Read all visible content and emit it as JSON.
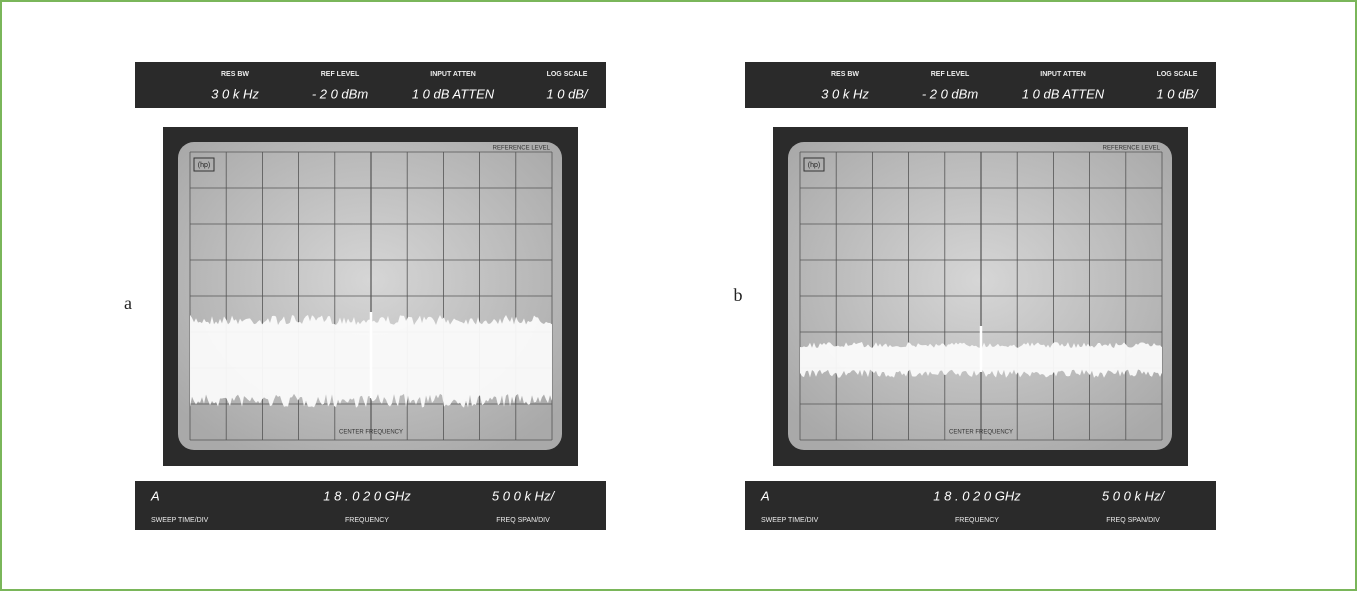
{
  "panels": [
    {
      "label": "a",
      "settings": [
        {
          "name": "RES BW",
          "value": "3 0 k Hz"
        },
        {
          "name": "REF LEVEL",
          "value": "- 2 0 dBm"
        },
        {
          "name": "INPUT ATTEN",
          "value": "1 0 dB ATTEN"
        },
        {
          "name": "LOG SCALE",
          "value": "1 0 dB/"
        }
      ],
      "screen": {
        "logo": "(hp)",
        "reference": "REFERENCE LEVEL",
        "center": "CENTER FREQUENCY"
      },
      "readouts": [
        {
          "name": "SWEEP TIME/DIV",
          "value": "A"
        },
        {
          "name": "FREQUENCY",
          "value": "1 8 . 0 2 0 GHz"
        },
        {
          "name": "FREQ SPAN/DIV",
          "value": "5 0 0 k Hz/"
        }
      ]
    },
    {
      "label": "b",
      "settings": [
        {
          "name": "RES BW",
          "value": "3 0 k Hz"
        },
        {
          "name": "REF LEVEL",
          "value": "- 2 0 dBm"
        },
        {
          "name": "INPUT ATTEN",
          "value": "1 0 dB ATTEN"
        },
        {
          "name": "LOG SCALE",
          "value": "1 0 dB/"
        }
      ],
      "screen": {
        "logo": "(hp)",
        "reference": "REFERENCE LEVEL",
        "center": "CENTER FREQUENCY"
      },
      "readouts": [
        {
          "name": "SWEEP TIME/DIV",
          "value": "A"
        },
        {
          "name": "FREQUENCY",
          "value": "1 8 . 0 2 0 GHz"
        },
        {
          "name": "FREQ SPAN/DIV",
          "value": "5 0 0 k Hz/"
        }
      ]
    }
  ]
}
